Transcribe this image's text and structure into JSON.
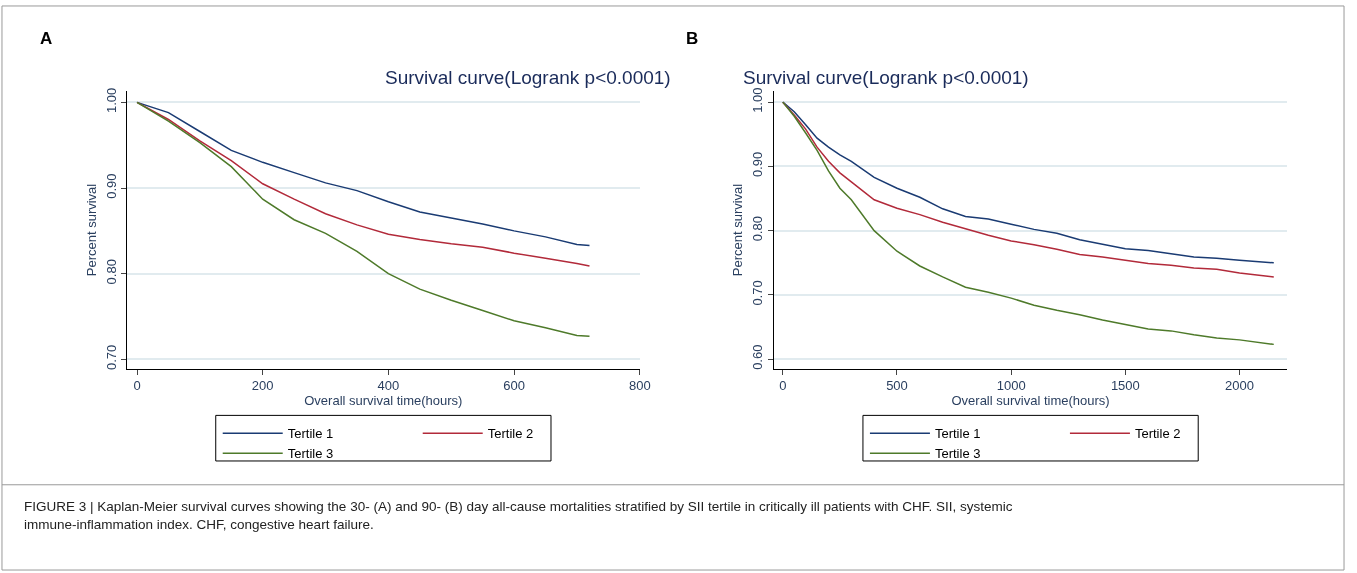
{
  "chart_data": [
    {
      "type": "line",
      "title": "Survival curve(Logrank p<0.0001)",
      "xlabel": "Overall survival time(hours)",
      "ylabel": "Percent survival",
      "x": [
        0,
        50,
        100,
        150,
        200,
        250,
        300,
        350,
        400,
        450,
        500,
        550,
        600,
        650,
        700,
        720
      ],
      "series": [
        {
          "name": "Tertile 1",
          "color": "#1a3b73",
          "values": [
            1,
            0.988,
            0.966,
            0.944,
            0.93,
            0.918,
            0.906,
            0.897,
            0.884,
            0.872,
            0.865,
            0.858,
            0.85,
            0.843,
            0.834,
            0.833
          ]
        },
        {
          "name": "Tertile 2",
          "color": "#b22a3a",
          "values": [
            1,
            0.98,
            0.955,
            0.932,
            0.905,
            0.887,
            0.87,
            0.857,
            0.846,
            0.84,
            0.835,
            0.831,
            0.824,
            0.818,
            0.812,
            0.809
          ]
        },
        {
          "name": "Tertile 3",
          "color": "#4e7a2a",
          "values": [
            1,
            0.978,
            0.953,
            0.925,
            0.887,
            0.863,
            0.847,
            0.826,
            0.8,
            0.782,
            0.769,
            0.757,
            0.745,
            0.737,
            0.728,
            0.727
          ]
        }
      ],
      "xlim": [
        -16,
        800
      ],
      "xticks": [
        0,
        200,
        400,
        600,
        800
      ],
      "ylim": [
        0.689,
        1.013
      ],
      "yticks": [
        {
          "value": 0.7,
          "label": "0.70"
        },
        {
          "value": 0.8,
          "label": "0.80"
        },
        {
          "value": 0.9,
          "label": "0.90"
        },
        {
          "value": 1.0,
          "label": "1.00"
        }
      ],
      "grid": "y",
      "legend": "bottom",
      "annotations": [
        "A"
      ]
    },
    {
      "type": "line",
      "title": "Survival curve(Logrank p<0.0001)",
      "xlabel": "Overall survival time(hours)",
      "ylabel": "Percent survival",
      "x": [
        0,
        50,
        100,
        150,
        200,
        250,
        300,
        400,
        500,
        600,
        700,
        800,
        900,
        1000,
        1100,
        1200,
        1300,
        1400,
        1500,
        1600,
        1700,
        1800,
        1900,
        2000,
        2150
      ],
      "series": [
        {
          "name": "Tertile 1",
          "color": "#1a3b73",
          "values": [
            1,
            0.985,
            0.965,
            0.944,
            0.93,
            0.918,
            0.908,
            0.883,
            0.866,
            0.852,
            0.834,
            0.822,
            0.818,
            0.81,
            0.802,
            0.796,
            0.786,
            0.779,
            0.772,
            0.769,
            0.764,
            0.759,
            0.757,
            0.754,
            0.75
          ]
        },
        {
          "name": "Tertile 2",
          "color": "#b22a3a",
          "values": [
            1,
            0.98,
            0.958,
            0.93,
            0.908,
            0.89,
            0.876,
            0.848,
            0.835,
            0.825,
            0.813,
            0.803,
            0.793,
            0.784,
            0.778,
            0.771,
            0.763,
            0.759,
            0.754,
            0.749,
            0.746,
            0.742,
            0.74,
            0.734,
            0.728
          ]
        },
        {
          "name": "Tertile 3",
          "color": "#4e7a2a",
          "values": [
            1,
            0.978,
            0.952,
            0.925,
            0.893,
            0.866,
            0.848,
            0.8,
            0.768,
            0.745,
            0.728,
            0.712,
            0.704,
            0.695,
            0.684,
            0.676,
            0.669,
            0.661,
            0.654,
            0.647,
            0.644,
            0.638,
            0.633,
            0.63,
            0.623
          ]
        }
      ],
      "xlim": [
        -40,
        2210
      ],
      "xticks": [
        0,
        500,
        1000,
        1500,
        2000
      ],
      "ylim": [
        0.585,
        1.017
      ],
      "yticks": [
        {
          "value": 0.6,
          "label": "0.60"
        },
        {
          "value": 0.7,
          "label": "0.70"
        },
        {
          "value": 0.8,
          "label": "0.80"
        },
        {
          "value": 0.9,
          "label": "0.90"
        },
        {
          "value": 1.0,
          "label": "1.00"
        }
      ],
      "grid": "y",
      "legend": "bottom",
      "annotations": [
        "B",
        "FIGURE 3 | Kaplan-Meier survival curves showing the 30- (A) and 90- (B) day all-cause mortalities stratified by SII tertile in critically ill patients with CHF. SII, systemic immune-inflammation index. CHF, congestive heart failure."
      ]
    }
  ]
}
